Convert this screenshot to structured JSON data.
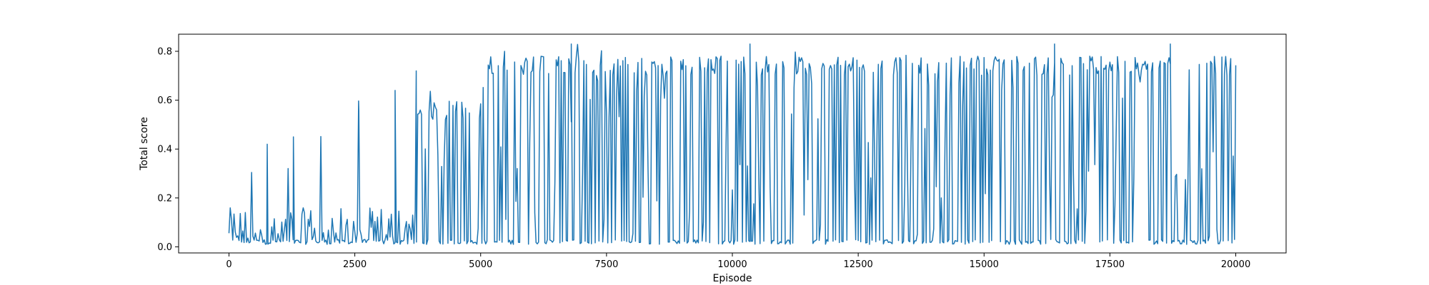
{
  "chart_data": {
    "type": "line",
    "xlabel": "Episode",
    "ylabel": "Total score",
    "xlim": [
      -1000,
      21000
    ],
    "ylim": [
      -0.025,
      0.87
    ],
    "xticks": [
      0,
      2500,
      5000,
      7500,
      10000,
      12500,
      15000,
      17500,
      20000
    ],
    "xtick_labels": [
      "0",
      "2500",
      "5000",
      "7500",
      "10000",
      "12500",
      "15000",
      "17500",
      "20000"
    ],
    "yticks": [
      0.0,
      0.2,
      0.4,
      0.6,
      0.8
    ],
    "ytick_labels": [
      "0.0",
      "0.2",
      "0.4",
      "0.6",
      "0.8"
    ],
    "grid": false,
    "series_color": "#1f77b4",
    "series": [
      {
        "x_start": 0,
        "x_step": 25,
        "phases": [
          {
            "x_from": 0,
            "x_to": 3700,
            "baseline": 0.01,
            "typical_peak": 0.15,
            "max_peak": 0.64
          },
          {
            "x_from": 3700,
            "x_to": 5000,
            "baseline": 0.01,
            "typical_peak": 0.6,
            "max_peak": 0.8
          },
          {
            "x_from": 5000,
            "x_to": 20000,
            "baseline": 0.01,
            "typical_peak": 0.78,
            "max_peak": 0.83
          }
        ],
        "notable_points": [
          {
            "x": 3720,
            "y": 0.72
          },
          {
            "x": 1280,
            "y": 0.45
          },
          {
            "x": 760,
            "y": 0.42
          },
          {
            "x": 3300,
            "y": 0.64
          },
          {
            "x": 2580,
            "y": 0.56
          },
          {
            "x": 6800,
            "y": 0.83
          },
          {
            "x": 10350,
            "y": 0.83
          },
          {
            "x": 16400,
            "y": 0.83
          },
          {
            "x": 18700,
            "y": 0.83
          }
        ]
      }
    ]
  }
}
